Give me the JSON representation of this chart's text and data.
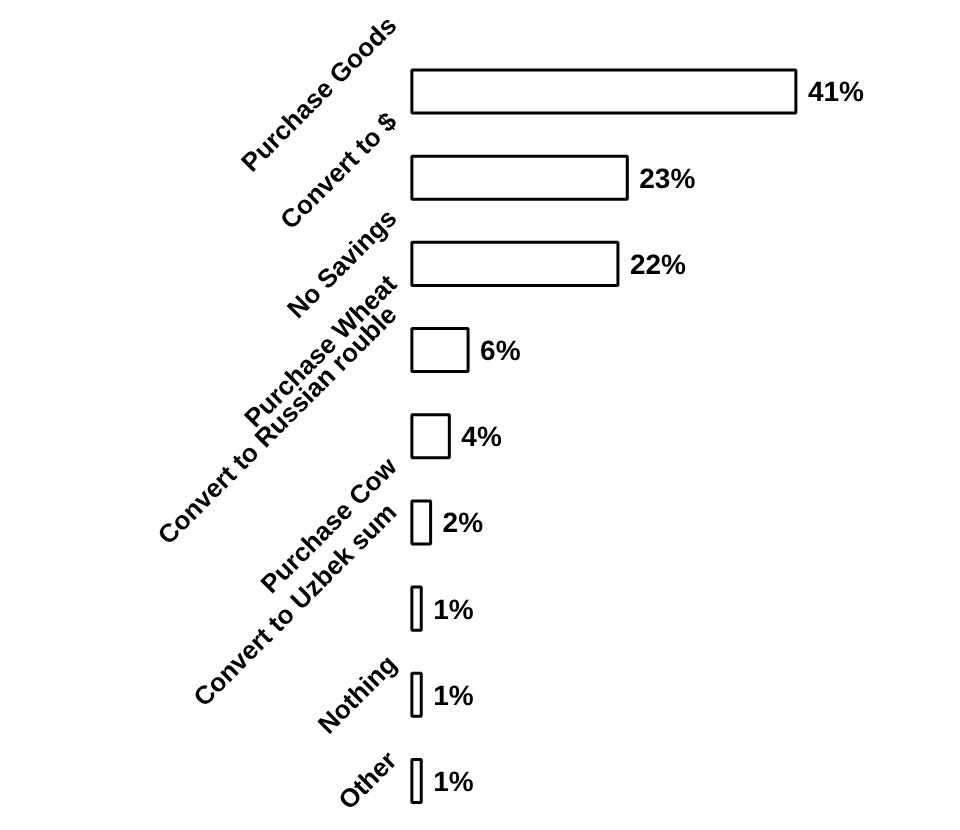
{
  "chart_data": {
    "type": "bar",
    "orientation": "horizontal",
    "categories": [
      "Purchase Goods",
      "Convert to $",
      "No Savings",
      "Purchase Wheat",
      "Convert to Russian rouble",
      "Purchase Cow",
      "Convert to Uzbek sum",
      "Nothing",
      "Other"
    ],
    "values": [
      41,
      23,
      22,
      6,
      4,
      2,
      1,
      1,
      1
    ],
    "value_labels": [
      "41%",
      "23%",
      "22%",
      "6%",
      "4%",
      "2%",
      "1%",
      "1%",
      "1%"
    ],
    "color": "#ffffff"
  }
}
